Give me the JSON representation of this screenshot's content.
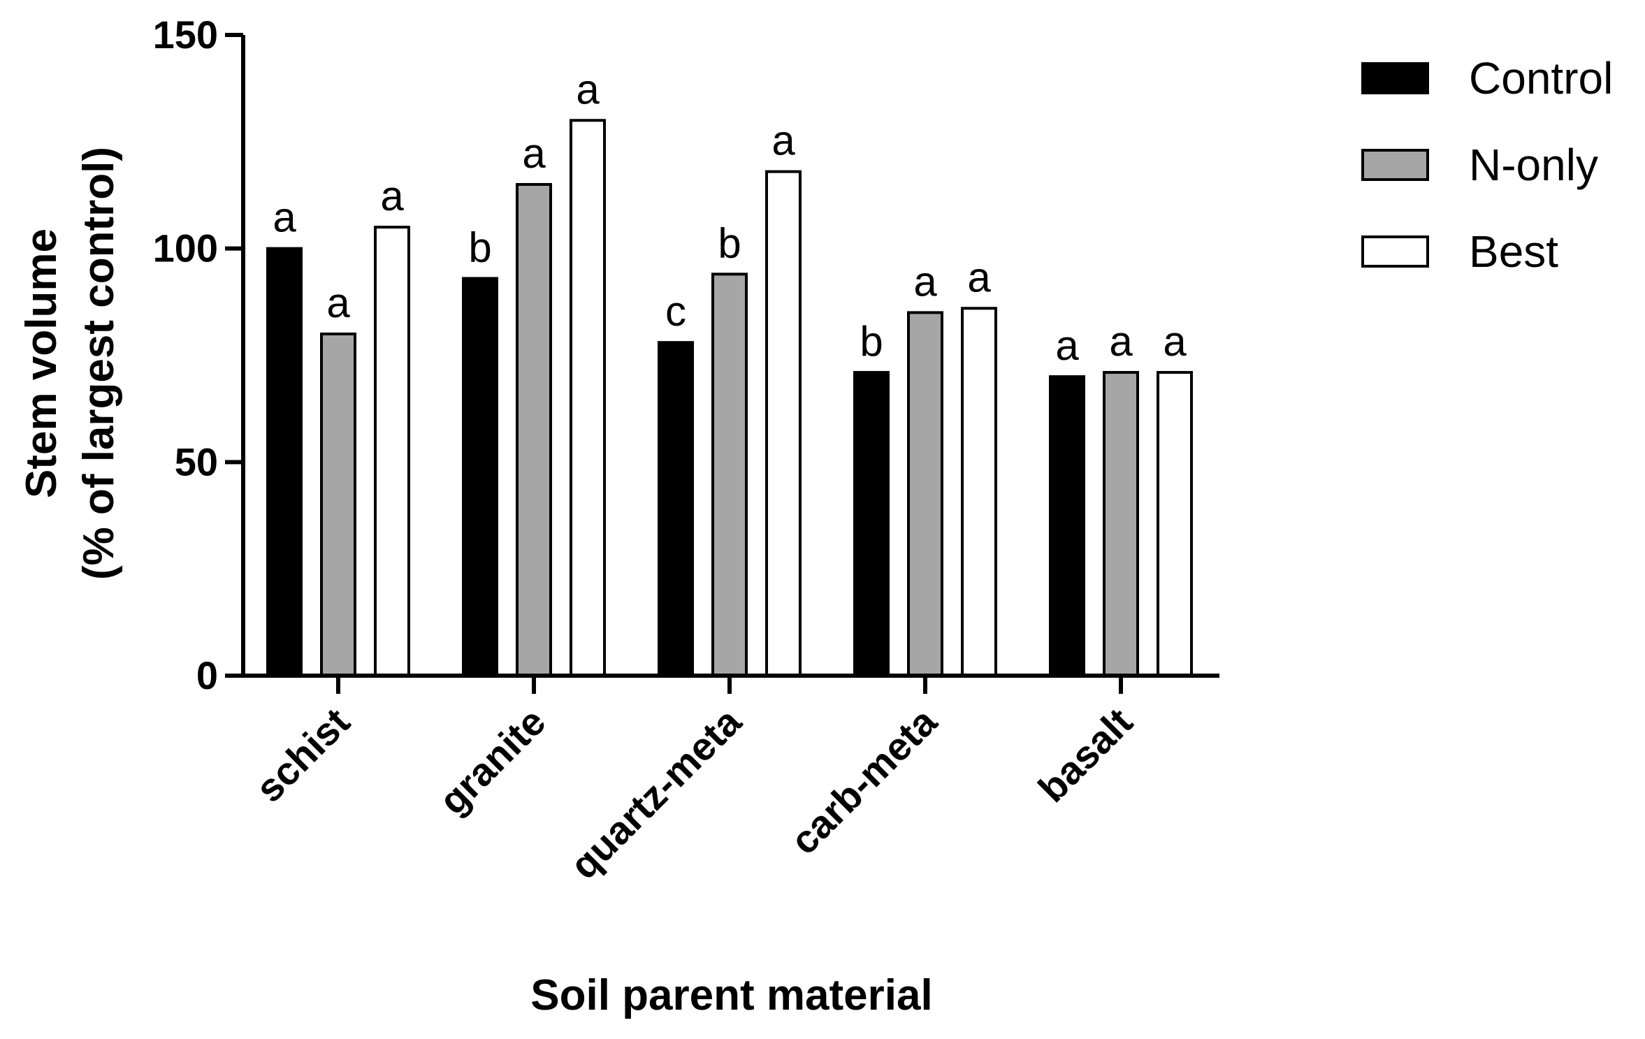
{
  "chart_data": {
    "type": "bar",
    "xlabel": "Soil parent material",
    "ylabel_line1": "Stem volume",
    "ylabel_line2": "(% of largest control)",
    "ylim": [
      0,
      150
    ],
    "yticks": [
      0,
      50,
      100,
      150
    ],
    "categories": [
      "schist",
      "granite",
      "quartz-meta",
      "carb-meta",
      "basalt"
    ],
    "series": [
      {
        "name": "Control",
        "color": "#000000",
        "values": [
          100,
          93,
          78,
          71,
          70
        ],
        "sig": [
          "a",
          "b",
          "c",
          "b",
          "a"
        ]
      },
      {
        "name": "N-only",
        "color": "#a6a6a6",
        "values": [
          80,
          115,
          94,
          85,
          71
        ],
        "sig": [
          "a",
          "a",
          "b",
          "a",
          "a"
        ]
      },
      {
        "name": "Best",
        "color": "#ffffff",
        "values": [
          105,
          130,
          118,
          86,
          71
        ],
        "sig": [
          "a",
          "a",
          "a",
          "a",
          "a"
        ]
      }
    ],
    "grid": false,
    "legend_position": "top-right"
  }
}
